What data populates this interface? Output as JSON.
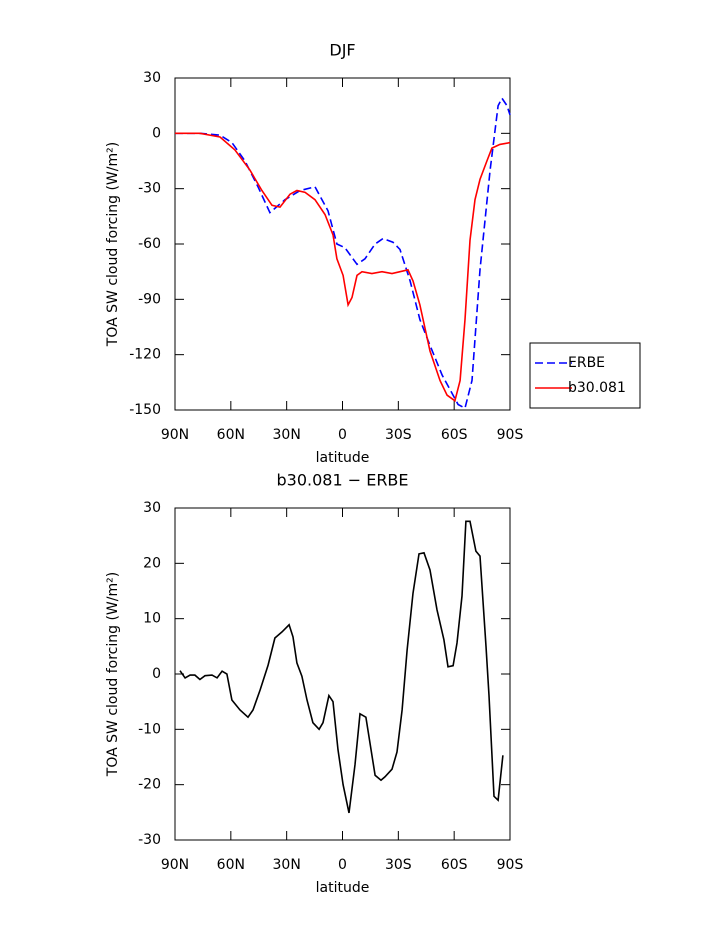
{
  "chart_data": [
    {
      "type": "line",
      "title": "DJF",
      "xlabel": "latitude",
      "ylabel": "TOA SW cloud forcing (W/m²)",
      "xlim": [
        90,
        -90
      ],
      "xticks": [
        {
          "value": 90,
          "label": "90N"
        },
        {
          "value": 60,
          "label": "60N"
        },
        {
          "value": 30,
          "label": "30N"
        },
        0,
        {
          "value": -30,
          "label": "30S"
        },
        {
          "value": -60,
          "label": "60S"
        },
        {
          "value": -90,
          "label": "90S"
        }
      ],
      "ylim": [
        -150,
        30
      ],
      "yticks": [
        -150,
        -120,
        -90,
        -60,
        -30,
        0,
        30
      ],
      "legend": "right",
      "series": [
        {
          "name": "ERBE",
          "color": "#0000ff",
          "linestyle": "dashed",
          "x": [
            90,
            76.6,
            65.8,
            59.4,
            52.4,
            45.4,
            39,
            30.9,
            22.8,
            14.8,
            7.8,
            3,
            -1.3,
            -7.8,
            -12.1,
            -17.5,
            -21.8,
            -27.1,
            -30.9,
            -36.3,
            -41.6,
            -47,
            -53.5,
            -59.4,
            -62.1,
            -65.8,
            -69.6,
            -73.9,
            -79.3,
            -83.6,
            -85.7,
            -88.4,
            -90
          ],
          "values": [
            0,
            0,
            -1,
            -5,
            -15,
            -29,
            -43,
            -36,
            -31,
            -29,
            -42,
            -60,
            -62,
            -71,
            -68,
            -60,
            -57,
            -59,
            -63,
            -80,
            -101,
            -115,
            -131,
            -142,
            -147,
            -149,
            -134,
            -74,
            -20,
            15,
            19,
            15,
            10
          ]
        },
        {
          "name": "b30.081",
          "color": "#ff0000",
          "linestyle": "solid",
          "x": [
            90,
            76.6,
            65.8,
            57.8,
            49.7,
            43.3,
            37.9,
            33.6,
            28.2,
            24.5,
            20.1,
            14.8,
            9.4,
            5.1,
            3,
            -0.3,
            -3,
            -5.1,
            -7.8,
            -10.5,
            -15.8,
            -21.2,
            -26.6,
            -30.9,
            -35.2,
            -37.9,
            -41.6,
            -47,
            -52.4,
            -56.2,
            -60.4,
            -63.2,
            -65.8,
            -68.5,
            -71.2,
            -73.9,
            -77.6,
            -80.3,
            -84.6,
            -90
          ],
          "values": [
            0,
            0,
            -2,
            -9,
            -20,
            -31,
            -39,
            -40,
            -33,
            -31,
            -32,
            -36,
            -44,
            -55,
            -68,
            -77,
            -93,
            -89,
            -77,
            -75,
            -76,
            -75,
            -76,
            -75,
            -74,
            -80,
            -93,
            -118,
            -134,
            -142,
            -145,
            -134,
            -101,
            -58,
            -36,
            -25,
            -15,
            -8,
            -6,
            -5
          ]
        }
      ]
    },
    {
      "type": "line",
      "title": "b30.081 − ERBE",
      "xlabel": "latitude",
      "ylabel": "TOA SW cloud forcing (W/m²)",
      "xlim": [
        90,
        -90
      ],
      "xticks": [
        {
          "value": 90,
          "label": "90N"
        },
        {
          "value": 60,
          "label": "60N"
        },
        {
          "value": 30,
          "label": "30N"
        },
        0,
        {
          "value": -30,
          "label": "30S"
        },
        {
          "value": -60,
          "label": "60S"
        },
        {
          "value": -90,
          "label": "90S"
        }
      ],
      "ylim": [
        -30,
        30
      ],
      "yticks": [
        -30,
        -20,
        -10,
        0,
        10,
        20,
        30
      ],
      "series": [
        {
          "color": "#000000",
          "linestyle": "solid",
          "x": [
            87.3,
            84.6,
            81.9,
            79.3,
            76.6,
            73.9,
            70.1,
            67.4,
            64.7,
            62.1,
            59.4,
            55.1,
            50.8,
            48.1,
            44.3,
            40,
            36.3,
            32.5,
            28.7,
            26.6,
            24.5,
            21.8,
            19.1,
            15.9,
            12.6,
            10.5,
            7.3,
            5.1,
            2.4,
            -0.3,
            -3.5,
            -6.7,
            -9.4,
            -12.6,
            -17.5,
            -20.7,
            -22.8,
            -26.6,
            -29.3,
            -32,
            -34.7,
            -37.9,
            -41.1,
            -43.8,
            -47,
            -50.8,
            -54.5,
            -56.7,
            -59.4,
            -61.5,
            -64.2,
            -66.3,
            -68.5,
            -71.7,
            -73.9,
            -77.1,
            -78.7,
            -81.4,
            -83.6,
            -86.2
          ],
          "values": [
            0.6,
            -0.7,
            -0.2,
            -0.2,
            -1,
            -0.3,
            -0.2,
            -0.7,
            0.5,
            0,
            -4.7,
            -6.5,
            -7.8,
            -6.5,
            -2.9,
            1.6,
            6.5,
            7.6,
            8.9,
            6.7,
            2,
            -0.4,
            -4.7,
            -8.8,
            -10,
            -8.8,
            -3.9,
            -5,
            -13.7,
            -20,
            -25.1,
            -16.4,
            -7.2,
            -7.8,
            -18.3,
            -19.2,
            -18.6,
            -17.2,
            -14.1,
            -6.5,
            4.3,
            14.6,
            21.7,
            21.9,
            18.8,
            11.6,
            6.2,
            1.3,
            1.5,
            5.6,
            14.1,
            27.6,
            27.6,
            22.2,
            21.3,
            5,
            -3.9,
            -22.1,
            -22.8,
            -14.7
          ]
        }
      ]
    }
  ]
}
